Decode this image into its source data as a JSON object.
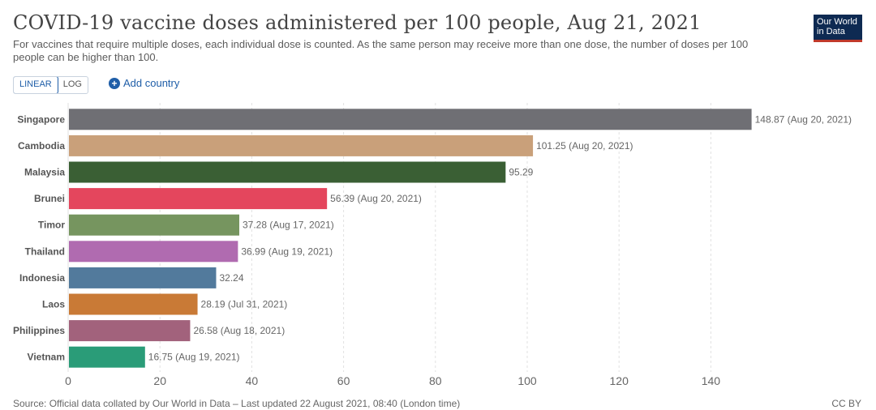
{
  "header": {
    "title": "COVID-19 vaccine doses administered per 100 people, Aug 21, 2021",
    "subtitle": "For vaccines that require multiple doses, each individual dose is counted. As the same person may receive more than one dose, the number of doses per 100 people can be higher than 100.",
    "logo_line1": "Our World",
    "logo_line2": "in Data"
  },
  "controls": {
    "linear_label": "LINEAR",
    "log_label": "LOG",
    "add_country_label": "Add country"
  },
  "footer": {
    "source": "Source: Official data collated by Our World in Data – Last updated 22 August 2021, 08:40 (London time)",
    "license": "CC BY"
  },
  "chart_data": {
    "type": "bar",
    "orientation": "horizontal",
    "title": "COVID-19 vaccine doses administered per 100 people, Aug 21, 2021",
    "xlabel": "",
    "ylabel": "",
    "xlim": [
      0,
      150
    ],
    "x_ticks": [
      0,
      20,
      40,
      60,
      80,
      100,
      120,
      140
    ],
    "grid": true,
    "categories": [
      "Singapore",
      "Cambodia",
      "Malaysia",
      "Brunei",
      "Timor",
      "Thailand",
      "Indonesia",
      "Laos",
      "Philippines",
      "Vietnam"
    ],
    "values": [
      148.87,
      101.25,
      95.29,
      56.39,
      37.28,
      36.99,
      32.24,
      28.19,
      26.58,
      16.75
    ],
    "value_labels": [
      "148.87 (Aug 20, 2021)",
      "101.25 (Aug 20, 2021)",
      "95.29",
      "56.39 (Aug 20, 2021)",
      "37.28 (Aug 17, 2021)",
      "36.99 (Aug 19, 2021)",
      "32.24",
      "28.19 (Jul 31, 2021)",
      "26.58 (Aug 18, 2021)",
      "16.75 (Aug 19, 2021)"
    ],
    "colors": [
      "#6f6f74",
      "#c9a07a",
      "#3a5f34",
      "#e4465d",
      "#76955f",
      "#b06bb0",
      "#527a9c",
      "#c97a36",
      "#a2627c",
      "#2a9c78"
    ]
  }
}
